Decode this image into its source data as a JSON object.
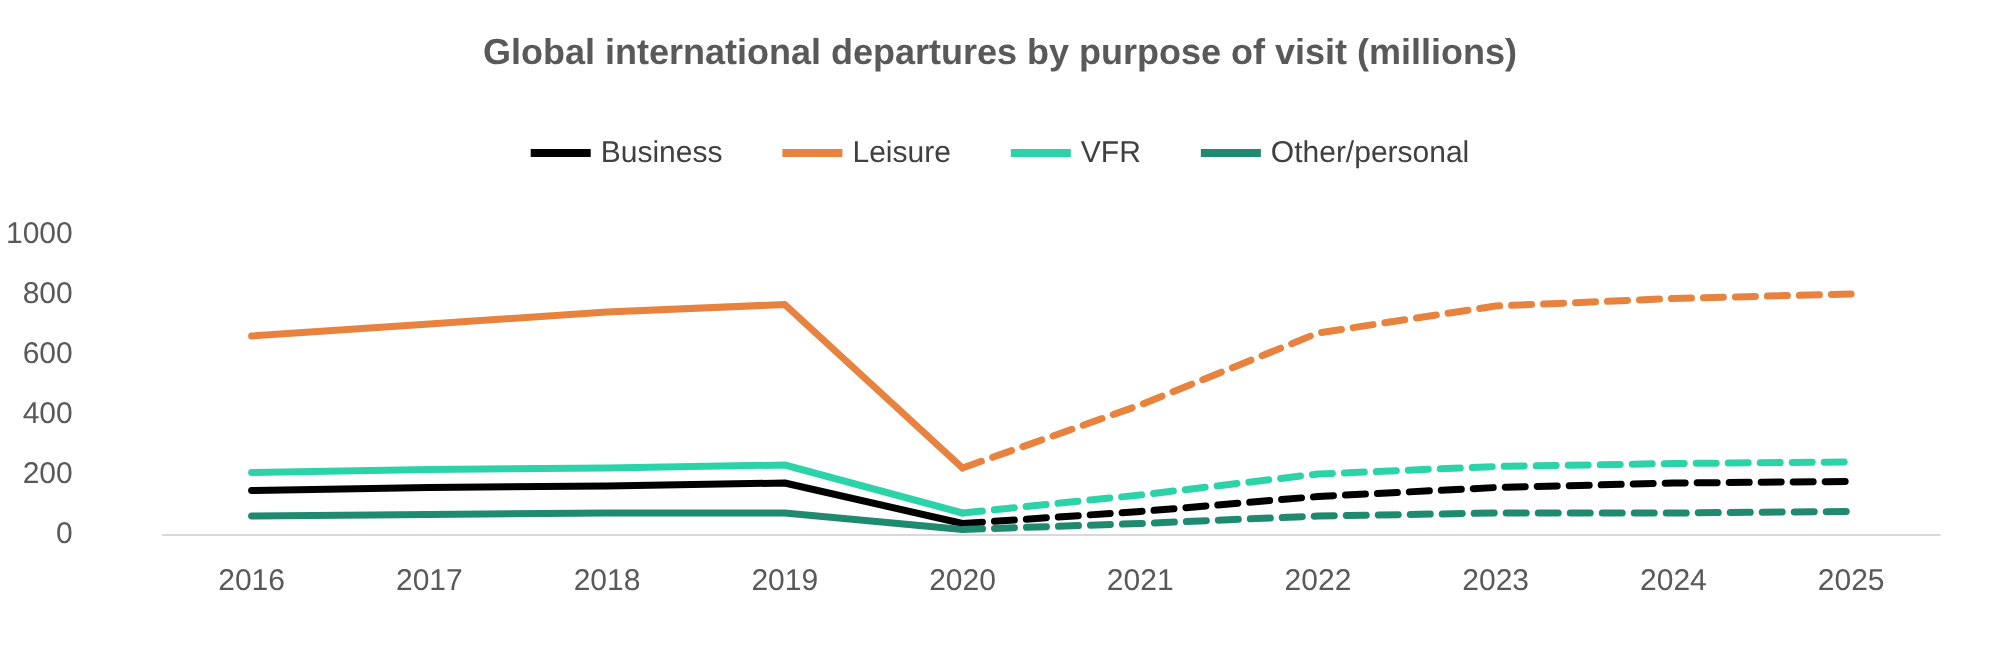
{
  "chart_data": {
    "type": "line",
    "title": "Global international departures by purpose of visit (millions)",
    "categories": [
      "2016",
      "2017",
      "2018",
      "2019",
      "2020",
      "2021",
      "2022",
      "2023",
      "2024",
      "2025"
    ],
    "series": [
      {
        "name": "Business",
        "color": "#000000",
        "line_style": "solid",
        "values": [
          145,
          155,
          160,
          170,
          35,
          null,
          null,
          null,
          null,
          null
        ]
      },
      {
        "name": "Leisure",
        "color": "#e8823f",
        "line_style": "solid",
        "values": [
          660,
          700,
          740,
          765,
          220,
          null,
          null,
          null,
          null,
          null
        ]
      },
      {
        "name": "VFR",
        "color": "#2dd3a8",
        "line_style": "solid",
        "values": [
          205,
          215,
          220,
          230,
          70,
          null,
          null,
          null,
          null,
          null
        ]
      },
      {
        "name": "Other/personal",
        "color": "#1f8a70",
        "line_style": "solid",
        "values": [
          60,
          65,
          70,
          70,
          15,
          null,
          null,
          null,
          null,
          null
        ]
      },
      {
        "color": "#000000",
        "line_style": "dashed",
        "values": [
          null,
          null,
          null,
          null,
          35,
          75,
          125,
          155,
          170,
          175
        ]
      },
      {
        "color": "#e8823f",
        "line_style": "dashed",
        "values": [
          null,
          null,
          null,
          null,
          220,
          430,
          670,
          760,
          785,
          800
        ]
      },
      {
        "color": "#2dd3a8",
        "line_style": "dashed",
        "values": [
          null,
          null,
          null,
          null,
          70,
          130,
          200,
          225,
          235,
          240
        ]
      },
      {
        "color": "#1f8a70",
        "line_style": "dashed",
        "values": [
          null,
          null,
          null,
          null,
          15,
          35,
          60,
          70,
          70,
          75
        ]
      }
    ],
    "ylim": [
      0,
      1000
    ],
    "yticks": [
      0,
      200,
      400,
      600,
      800,
      1000
    ],
    "grid": false,
    "legend": "top",
    "marker": "none"
  }
}
